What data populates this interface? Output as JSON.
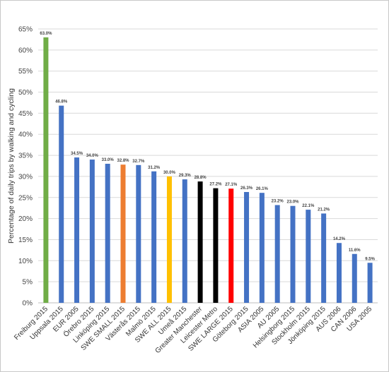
{
  "chart_data": {
    "type": "bar",
    "title": "",
    "xlabel": "",
    "ylabel": "Percentage of daily trips by walking and cycling",
    "ylim": [
      0,
      65
    ],
    "y_ticks": [
      "0%",
      "5%",
      "10%",
      "15%",
      "20%",
      "25%",
      "30%",
      "35%",
      "40%",
      "45%",
      "50%",
      "55%",
      "60%",
      "65%"
    ],
    "grid": true,
    "legend": "none",
    "categories": [
      "Freiburg 2015",
      "Uppsala 2015",
      "EUR 2005",
      "Örebro 2015",
      "Linköping 2015",
      "SWE SMALL 2015",
      "Västerås 2015",
      "Malmö 2015",
      "SWE ALL 2015",
      "Umeå 2015",
      "Greater Manchester",
      "Leicester Metro",
      "SWE LARGE 2015",
      "Göteborg 2015",
      "ASIA 2005",
      "AU 2005",
      "Helsingborg 2015",
      "Stockholm 2015",
      "Jönköping 2015",
      "AUS 2006",
      "CAN 2006",
      "USA 2005"
    ],
    "values": [
      63.0,
      46.8,
      34.5,
      34.0,
      33.0,
      32.8,
      32.7,
      31.2,
      30.0,
      29.3,
      28.8,
      27.2,
      27.1,
      26.3,
      26.1,
      23.2,
      23.0,
      22.1,
      21.2,
      14.2,
      11.6,
      9.5
    ],
    "value_labels": [
      "63.0%",
      "46.8%",
      "34.5%",
      "34.0%",
      "33.0%",
      "32.8%",
      "32.7%",
      "31.2%",
      "30.0%",
      "29.3%",
      "28.8%",
      "27.2%",
      "27.1%",
      "26.3%",
      "26.1%",
      "23.2%",
      "23.0%",
      "22.1%",
      "21.2%",
      "14.2%",
      "11.6%",
      "9.5%"
    ],
    "colors": [
      "#70ad47",
      "#4472c4",
      "#4472c4",
      "#4472c4",
      "#4472c4",
      "#ed7d31",
      "#4472c4",
      "#4472c4",
      "#ffc000",
      "#4472c4",
      "#000000",
      "#000000",
      "#ff0000",
      "#4472c4",
      "#4472c4",
      "#4472c4",
      "#4472c4",
      "#4472c4",
      "#4472c4",
      "#4472c4",
      "#4472c4",
      "#4472c4"
    ]
  }
}
